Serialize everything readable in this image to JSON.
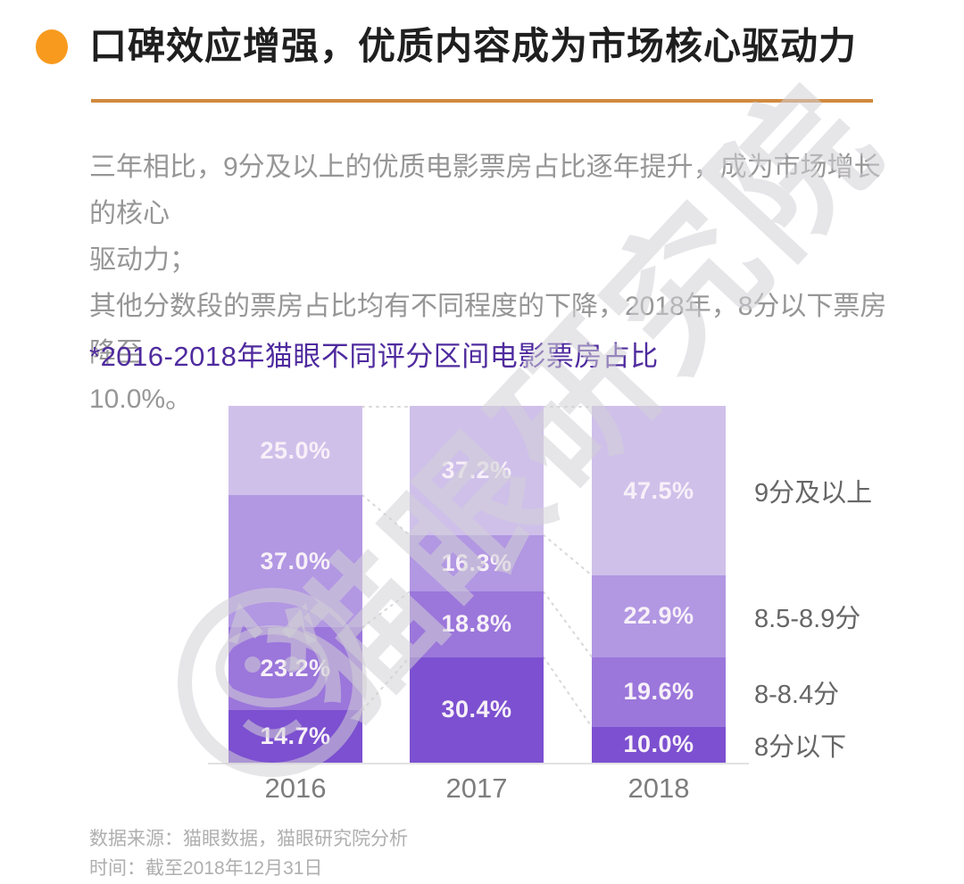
{
  "header": {
    "title": "口碑效应增强，优质内容成为市场核心驱动力",
    "accent_color": "#F89A1E",
    "underline_color": "#D08A3E"
  },
  "intro": {
    "lines": [
      "三年相比，9分及以上的优质电影票房占比逐年提升，成为市场增长的核心",
      "驱动力；",
      "其他分数段的票房占比均有不同程度的下降，2018年，8分以下票房降至",
      "10.0%。"
    ]
  },
  "chart": {
    "title": "*2016-2018年猫眼不同评分区间电影票房占比",
    "title_color": "#4F2B9E"
  },
  "chart_data": {
    "type": "bar",
    "stacked": true,
    "normalized": true,
    "unit": "%",
    "title": "*2016-2018年猫眼不同评分区间电影票房占比",
    "categories": [
      "2016",
      "2017",
      "2018"
    ],
    "series": [
      {
        "name": "9分及以上",
        "color": "#CFC0EA",
        "values": [
          25.0,
          37.2,
          47.5
        ]
      },
      {
        "name": "8.5-8.9分",
        "color": "#B297E3",
        "values": [
          37.0,
          16.3,
          22.9
        ]
      },
      {
        "name": "8-8.4分",
        "color": "#9B76DB",
        "values": [
          23.2,
          18.8,
          19.6
        ]
      },
      {
        "name": "8分以下",
        "color": "#7C50D0",
        "values": [
          14.7,
          30.4,
          10.0
        ]
      }
    ],
    "legend_position": "right",
    "grid": false,
    "value_label_format": "one-decimal-percent"
  },
  "footer": {
    "source": "数据来源：猫眼数据，猫眼研究院分析",
    "time": "时间：截至2018年12月31日"
  },
  "watermark": {
    "text": "猫眼研究院"
  }
}
